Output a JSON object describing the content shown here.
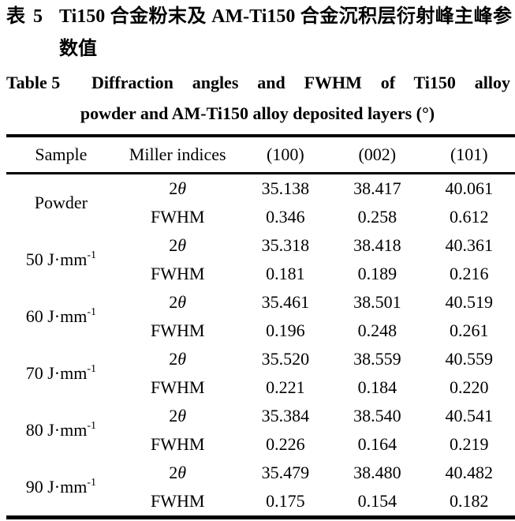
{
  "page": {
    "background": "#ffffff",
    "text_color": "#000000"
  },
  "captions": {
    "zh_label": "表 5",
    "zh_line1": "Ti150 合金粉末及 AM-Ti150 合金沉积层衍射峰主峰参",
    "zh_line2": "数值",
    "en_label": "Table 5",
    "en_line1": "Diffraction angles and FWHM of Ti150 alloy",
    "en_line2": "powder and AM-Ti150 alloy deposited layers (°)"
  },
  "table": {
    "headers": [
      "Sample",
      "Miller indices",
      "(100)",
      "(002)",
      "(101)"
    ],
    "groups": [
      {
        "sample": "Powder",
        "sample_sup": "",
        "rows": [
          {
            "label_pre": "2",
            "label_italic": "θ",
            "values": [
              "35.138",
              "38.417",
              "40.061"
            ]
          },
          {
            "label_pre": "FWHM",
            "label_italic": "",
            "values": [
              "0.346",
              "0.258",
              "0.612"
            ]
          }
        ]
      },
      {
        "sample": "50 J·mm",
        "sample_sup": "-1",
        "rows": [
          {
            "label_pre": "2",
            "label_italic": "θ",
            "values": [
              "35.318",
              "38.418",
              "40.361"
            ]
          },
          {
            "label_pre": "FWHM",
            "label_italic": "",
            "values": [
              "0.181",
              "0.189",
              "0.216"
            ]
          }
        ]
      },
      {
        "sample": "60 J·mm",
        "sample_sup": "-1",
        "rows": [
          {
            "label_pre": "2",
            "label_italic": "θ",
            "values": [
              "35.461",
              "38.501",
              "40.519"
            ]
          },
          {
            "label_pre": "FWHM",
            "label_italic": "",
            "values": [
              "0.196",
              "0.248",
              "0.261"
            ]
          }
        ]
      },
      {
        "sample": "70 J·mm",
        "sample_sup": "-1",
        "rows": [
          {
            "label_pre": "2",
            "label_italic": "θ",
            "values": [
              "35.520",
              "38.559",
              "40.559"
            ]
          },
          {
            "label_pre": "FWHM",
            "label_italic": "",
            "values": [
              "0.221",
              "0.184",
              "0.220"
            ]
          }
        ]
      },
      {
        "sample": "80 J·mm",
        "sample_sup": "-1",
        "rows": [
          {
            "label_pre": "2",
            "label_italic": "θ",
            "values": [
              "35.384",
              "38.540",
              "40.541"
            ]
          },
          {
            "label_pre": "FWHM",
            "label_italic": "",
            "values": [
              "0.226",
              "0.164",
              "0.219"
            ]
          }
        ]
      },
      {
        "sample": "90 J·mm",
        "sample_sup": "-1",
        "rows": [
          {
            "label_pre": "2",
            "label_italic": "θ",
            "values": [
              "35.479",
              "38.480",
              "40.482"
            ]
          },
          {
            "label_pre": "FWHM",
            "label_italic": "",
            "values": [
              "0.175",
              "0.154",
              "0.182"
            ]
          }
        ]
      }
    ]
  }
}
